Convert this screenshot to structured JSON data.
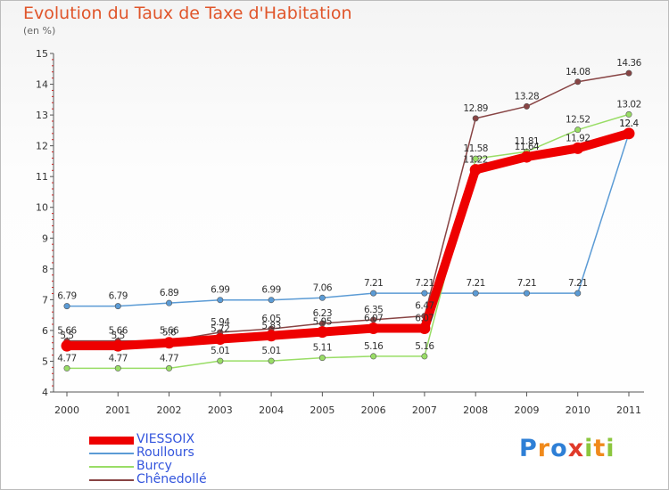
{
  "header": {
    "title": "Evolution du Taux de Taxe d'Habitation",
    "subtitle": "(en %)"
  },
  "logo": {
    "text": "Proxiti",
    "letter_colors": [
      "#2e7fd6",
      "#f08a1c",
      "#2e7fd6",
      "#e03a2a",
      "#8cc63e",
      "#f08a1c",
      "#8cc63e"
    ]
  },
  "chart_data": {
    "type": "line",
    "x": [
      "2000",
      "2001",
      "2002",
      "2003",
      "2004",
      "2005",
      "2006",
      "2007",
      "2008",
      "2009",
      "2010",
      "2011"
    ],
    "ylim": [
      4,
      15
    ],
    "yticks": [
      "4",
      "5",
      "6",
      "7",
      "8",
      "9",
      "10",
      "11",
      "12",
      "13",
      "14",
      "15"
    ],
    "grid": false,
    "legend_position": "bottom-left",
    "series": [
      {
        "name": "VIESSOIX",
        "color": "#ee0000",
        "values": [
          5.5,
          5.5,
          5.6,
          5.72,
          5.83,
          5.95,
          6.07,
          6.07,
          11.22,
          11.64,
          11.92,
          12.4
        ],
        "labels": [
          "5.5",
          "5.5",
          "5.6",
          "5.72",
          "5.83",
          "5.95",
          "6.07",
          "6.07",
          "11.22",
          "11.64",
          "11.92",
          "12.4"
        ]
      },
      {
        "name": "Roullours",
        "color": "#5b9bd5",
        "values": [
          6.79,
          6.79,
          6.89,
          6.99,
          6.99,
          7.06,
          7.21,
          7.21,
          7.21,
          7.21,
          7.21,
          12.4
        ],
        "labels": [
          "6.79",
          "6.79",
          "6.89",
          "6.99",
          "6.99",
          "7.06",
          "7.21",
          "7.21",
          "7.21",
          "7.21",
          "7.21",
          "12.4"
        ]
      },
      {
        "name": "Burcy",
        "color": "#99dd66",
        "values": [
          4.77,
          4.77,
          4.77,
          5.01,
          5.01,
          5.11,
          5.16,
          5.16,
          11.58,
          11.81,
          12.52,
          13.02
        ],
        "labels": [
          "4.77",
          "4.77",
          "4.77",
          "5.01",
          "5.01",
          "5.11",
          "5.16",
          "5.16",
          "11.58",
          "11.81",
          "12.52",
          "13.02"
        ]
      },
      {
        "name": "Chênedollé",
        "color": "#884444",
        "values": [
          5.66,
          5.66,
          5.66,
          5.94,
          6.05,
          6.23,
          6.35,
          6.47,
          12.89,
          13.28,
          14.08,
          14.36
        ],
        "labels": [
          "5.66",
          "5.66",
          "5.66",
          "5.94",
          "6.05",
          "6.23",
          "6.35",
          "6.47",
          "12.89",
          "13.28",
          "14.08",
          "14.36"
        ]
      }
    ]
  }
}
